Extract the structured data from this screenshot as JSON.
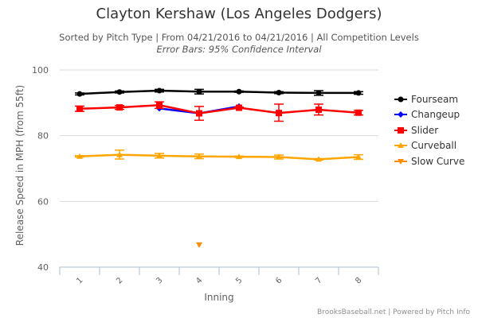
{
  "chart_data": {
    "type": "line",
    "title": "Clayton Kershaw (Los Angeles Dodgers)",
    "subtitle": "Sorted by Pitch Type | From 04/21/2016 to 04/21/2016 | All Competition Levels",
    "subtitle2": "Error Bars: 95% Confidence Interval",
    "xlabel": "Inning",
    "ylabel": "Release Speed in MPH (from 55ft)",
    "categories": [
      "1",
      "2",
      "3",
      "4",
      "5",
      "6",
      "7",
      "8"
    ],
    "ylim": [
      40,
      100
    ],
    "yticks": [
      "40",
      "60",
      "80",
      "100"
    ],
    "grid": true,
    "legend_position": "right",
    "series": [
      {
        "name": "Fourseam",
        "color": "#000000",
        "marker": "circle",
        "values": [
          92.7,
          93.3,
          93.7,
          93.4,
          93.4,
          93.1,
          93.0,
          93.0
        ],
        "err_low": [
          92.4,
          93.0,
          93.3,
          92.7,
          93.2,
          92.8,
          92.3,
          92.6
        ],
        "err_high": [
          93.0,
          93.6,
          94.1,
          94.1,
          93.6,
          93.4,
          93.7,
          93.4
        ]
      },
      {
        "name": "Changeup",
        "color": "#0000ff",
        "marker": "diamond",
        "values": [
          null,
          null,
          88.3,
          86.8,
          88.9,
          null,
          null,
          null
        ],
        "err_low": [
          null,
          null,
          null,
          null,
          null,
          null,
          null,
          null
        ],
        "err_high": [
          null,
          null,
          null,
          null,
          null,
          null,
          null,
          null
        ]
      },
      {
        "name": "Slider",
        "color": "#ff0000",
        "marker": "square",
        "values": [
          88.2,
          88.6,
          89.3,
          86.8,
          88.5,
          86.9,
          87.9,
          87.0
        ],
        "err_low": [
          87.4,
          88.0,
          88.3,
          84.7,
          88.3,
          84.4,
          86.3,
          86.3
        ],
        "err_high": [
          89.0,
          89.2,
          90.3,
          88.9,
          88.7,
          89.6,
          89.6,
          87.7
        ]
      },
      {
        "name": "Curveball",
        "color": "#ffa500",
        "marker": "triangle",
        "values": [
          73.7,
          74.2,
          73.9,
          73.7,
          73.6,
          73.5,
          72.8,
          73.5
        ],
        "err_low": [
          73.5,
          72.9,
          73.2,
          73.0,
          73.4,
          72.9,
          72.6,
          72.8
        ],
        "err_high": [
          73.9,
          75.6,
          74.6,
          74.4,
          73.8,
          74.1,
          73.0,
          74.2
        ]
      },
      {
        "name": "Slow Curve",
        "color": "#ff8c00",
        "marker": "triangle-down",
        "values": [
          null,
          null,
          null,
          46.8,
          null,
          null,
          null,
          null
        ],
        "err_low": [
          null,
          null,
          null,
          null,
          null,
          null,
          null,
          null
        ],
        "err_high": [
          null,
          null,
          null,
          null,
          null,
          null,
          null,
          null
        ]
      }
    ]
  },
  "credits": "BrooksBaseball.net | Powered by Pitch Info"
}
